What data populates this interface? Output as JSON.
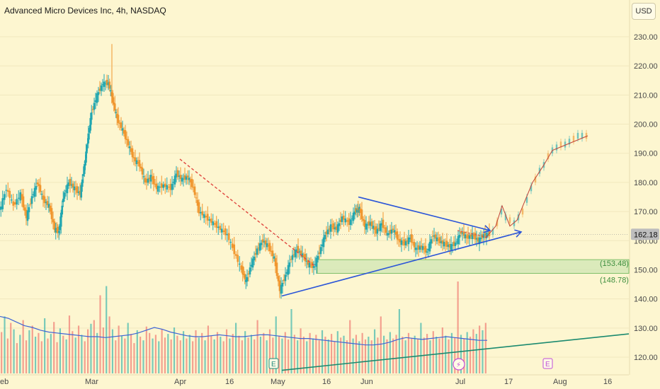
{
  "header": {
    "title": "Advanced Micro Devices Inc, 4h, NASDAQ",
    "currency": "USD"
  },
  "chart_data": {
    "type": "candlestick",
    "title": "Advanced Micro Devices Inc, 4h, NASDAQ",
    "ylim": [
      116,
      236
    ],
    "y_ticks": [
      120,
      130,
      140,
      150,
      160,
      170,
      180,
      190,
      200,
      210,
      220,
      230
    ],
    "y_tick_labels": [
      "120.00",
      "130.00",
      "140.00",
      "150.00",
      "160.00",
      "170.00",
      "180.00",
      "190.00",
      "200.00",
      "210.00",
      "220.00",
      "230.00"
    ],
    "x_tick_labels": [
      "eb",
      "Mar",
      "Apr",
      "16",
      "May",
      "16",
      "Jun",
      "Jul",
      "17",
      "Aug",
      "16"
    ],
    "current_price": {
      "value": 162.18,
      "label": "162.18"
    },
    "price_path": [
      {
        "t": 0,
        "p": 170
      },
      {
        "t": 10,
        "p": 178
      },
      {
        "t": 20,
        "p": 172
      },
      {
        "t": 30,
        "p": 176
      },
      {
        "t": 38,
        "p": 168
      },
      {
        "t": 46,
        "p": 175
      },
      {
        "t": 54,
        "p": 180
      },
      {
        "t": 62,
        "p": 174
      },
      {
        "t": 70,
        "p": 172
      },
      {
        "t": 78,
        "p": 164
      },
      {
        "t": 84,
        "p": 163
      },
      {
        "t": 90,
        "p": 175
      },
      {
        "t": 98,
        "p": 180
      },
      {
        "t": 106,
        "p": 178
      },
      {
        "t": 114,
        "p": 176
      },
      {
        "t": 120,
        "p": 186
      },
      {
        "t": 124,
        "p": 194
      },
      {
        "t": 130,
        "p": 204
      },
      {
        "t": 138,
        "p": 210
      },
      {
        "t": 146,
        "p": 214
      },
      {
        "t": 154,
        "p": 214
      },
      {
        "t": 160,
        "p": 208
      },
      {
        "t": 166,
        "p": 202
      },
      {
        "t": 174,
        "p": 198
      },
      {
        "t": 182,
        "p": 193
      },
      {
        "t": 190,
        "p": 188
      },
      {
        "t": 198,
        "p": 186
      },
      {
        "t": 206,
        "p": 180
      },
      {
        "t": 214,
        "p": 182
      },
      {
        "t": 222,
        "p": 178
      },
      {
        "t": 232,
        "p": 179
      },
      {
        "t": 242,
        "p": 178
      },
      {
        "t": 250,
        "p": 183
      },
      {
        "t": 258,
        "p": 181
      },
      {
        "t": 266,
        "p": 182
      },
      {
        "t": 274,
        "p": 178
      },
      {
        "t": 282,
        "p": 170
      },
      {
        "t": 292,
        "p": 168
      },
      {
        "t": 302,
        "p": 166
      },
      {
        "t": 312,
        "p": 164
      },
      {
        "t": 322,
        "p": 162
      },
      {
        "t": 332,
        "p": 156
      },
      {
        "t": 342,
        "p": 150
      },
      {
        "t": 348,
        "p": 146
      },
      {
        "t": 356,
        "p": 152
      },
      {
        "t": 364,
        "p": 157
      },
      {
        "t": 372,
        "p": 160
      },
      {
        "t": 380,
        "p": 158
      },
      {
        "t": 388,
        "p": 154
      },
      {
        "t": 396,
        "p": 143
      },
      {
        "t": 404,
        "p": 148
      },
      {
        "t": 412,
        "p": 154
      },
      {
        "t": 420,
        "p": 157
      },
      {
        "t": 428,
        "p": 155
      },
      {
        "t": 436,
        "p": 152
      },
      {
        "t": 444,
        "p": 151
      },
      {
        "t": 452,
        "p": 156
      },
      {
        "t": 460,
        "p": 162
      },
      {
        "t": 468,
        "p": 165
      },
      {
        "t": 476,
        "p": 164
      },
      {
        "t": 484,
        "p": 168
      },
      {
        "t": 494,
        "p": 166
      },
      {
        "t": 502,
        "p": 170
      },
      {
        "t": 508,
        "p": 171
      },
      {
        "t": 516,
        "p": 165
      },
      {
        "t": 524,
        "p": 166
      },
      {
        "t": 532,
        "p": 163
      },
      {
        "t": 540,
        "p": 166
      },
      {
        "t": 548,
        "p": 162
      },
      {
        "t": 556,
        "p": 164
      },
      {
        "t": 564,
        "p": 160
      },
      {
        "t": 572,
        "p": 159
      },
      {
        "t": 580,
        "p": 161
      },
      {
        "t": 588,
        "p": 157
      },
      {
        "t": 596,
        "p": 158
      },
      {
        "t": 604,
        "p": 156
      },
      {
        "t": 612,
        "p": 162
      },
      {
        "t": 620,
        "p": 160
      },
      {
        "t": 628,
        "p": 159
      },
      {
        "t": 636,
        "p": 158
      },
      {
        "t": 644,
        "p": 159
      },
      {
        "t": 652,
        "p": 163
      },
      {
        "t": 660,
        "p": 161
      },
      {
        "t": 668,
        "p": 162
      },
      {
        "t": 676,
        "p": 160
      },
      {
        "t": 684,
        "p": 162
      },
      {
        "t": 692,
        "p": 162.18
      }
    ],
    "projection_candles": [
      {
        "t": 696,
        "p": 163
      },
      {
        "t": 702,
        "p": 166
      },
      {
        "t": 708,
        "p": 170
      },
      {
        "t": 714,
        "p": 168
      },
      {
        "t": 720,
        "p": 167
      },
      {
        "t": 726,
        "p": 166
      },
      {
        "t": 732,
        "p": 168
      },
      {
        "t": 738,
        "p": 170
      },
      {
        "t": 744,
        "p": 174
      },
      {
        "t": 750,
        "p": 178
      },
      {
        "t": 756,
        "p": 181
      },
      {
        "t": 762,
        "p": 184
      },
      {
        "t": 768,
        "p": 186
      },
      {
        "t": 774,
        "p": 189
      },
      {
        "t": 780,
        "p": 191
      },
      {
        "t": 786,
        "p": 192
      },
      {
        "t": 792,
        "p": 193
      },
      {
        "t": 798,
        "p": 193
      },
      {
        "t": 804,
        "p": 194
      },
      {
        "t": 810,
        "p": 195
      },
      {
        "t": 816,
        "p": 196
      },
      {
        "t": 822,
        "p": 196
      },
      {
        "t": 828,
        "p": 196
      }
    ],
    "projection_path": [
      {
        "t": 686,
        "p": 161
      },
      {
        "t": 700,
        "p": 165
      },
      {
        "t": 709,
        "p": 172
      },
      {
        "t": 720,
        "p": 165
      },
      {
        "t": 730,
        "p": 167
      },
      {
        "t": 752,
        "p": 180
      },
      {
        "t": 768,
        "p": 186
      },
      {
        "t": 780,
        "p": 191
      },
      {
        "t": 800,
        "p": 193
      },
      {
        "t": 830,
        "p": 196
      }
    ],
    "support_zone": {
      "high": 153.48,
      "low": 148.78,
      "x_start": 448,
      "x_end": 888,
      "high_label": "(153.48)",
      "low_label": "(148.78)"
    },
    "drawings": {
      "downtrend_dashed": {
        "from": {
          "t": 254,
          "p": 188
        },
        "to": {
          "t": 446,
          "p": 151
        }
      },
      "triangle_upper": {
        "from": {
          "t": 506,
          "p": 175
        },
        "to": {
          "t": 692,
          "p": 163.5
        }
      },
      "triangle_lower": {
        "from": {
          "t": 398,
          "p": 141
        },
        "to": {
          "t": 736,
          "p": 163
        }
      },
      "arrow_small_red": {
        "from": {
          "t": 646,
          "p": 163.5
        },
        "to": {
          "t": 690,
          "p": 161
        }
      }
    },
    "volume": {
      "bars": [
        0.45,
        0.62,
        0.38,
        0.55,
        0.48,
        0.33,
        0.42,
        0.58,
        0.36,
        0.47,
        0.52,
        0.4,
        0.44,
        0.35,
        0.6,
        0.38,
        0.43,
        0.56,
        0.34,
        0.49,
        0.41,
        0.37,
        0.63,
        0.46,
        0.39,
        0.52,
        0.42,
        0.35,
        0.48,
        0.54,
        0.58,
        0.44,
        0.85,
        0.5,
        0.95,
        0.62,
        0.48,
        0.36,
        0.52,
        0.41,
        0.38,
        0.55,
        0.43,
        0.33,
        0.47,
        0.4,
        0.36,
        0.51,
        0.44,
        0.38,
        0.42,
        0.35,
        0.48,
        0.39,
        0.43,
        0.37,
        0.5,
        0.41,
        0.36,
        0.46,
        0.38,
        0.42,
        0.35,
        0.47,
        0.39,
        0.44,
        0.36,
        0.52,
        0.41,
        0.37,
        0.45,
        0.4,
        0.35,
        0.48,
        0.38,
        0.43,
        0.55,
        0.41,
        0.36,
        0.46,
        0.39,
        0.42,
        0.37,
        0.58,
        0.4,
        0.44,
        0.36,
        0.48,
        0.39,
        0.62,
        0.41,
        0.38,
        0.45,
        0.37,
        0.7,
        0.42,
        0.36,
        0.49,
        0.4,
        0.35,
        0.44,
        0.38,
        0.42,
        0.36,
        0.47,
        0.4,
        0.37,
        0.43,
        0.35,
        0.46,
        0.39,
        0.41,
        0.36,
        0.58,
        0.38,
        0.42,
        0.35,
        0.44,
        0.37,
        0.4,
        0.36,
        0.48,
        0.39,
        0.62,
        0.41,
        0.37,
        0.45,
        0.38,
        0.42,
        0.7,
        0.4,
        0.36,
        0.44,
        0.38,
        0.41,
        0.37,
        0.55,
        0.39,
        0.43,
        0.36,
        0.46,
        0.4,
        0.38,
        0.5,
        0.41,
        0.37,
        0.44,
        0.39,
        1.0,
        0.42,
        0.38,
        0.45,
        0.4,
        0.48,
        0.43,
        0.52,
        0.47,
        0.55
      ],
      "ma": [
        0.62,
        0.6,
        0.56,
        0.52,
        0.5,
        0.47,
        0.45,
        0.44,
        0.43,
        0.42,
        0.41,
        0.4,
        0.4,
        0.39,
        0.4,
        0.41,
        0.42,
        0.44,
        0.47,
        0.5,
        0.48,
        0.45,
        0.43,
        0.41,
        0.4,
        0.4,
        0.41,
        0.42,
        0.41,
        0.4,
        0.4,
        0.41,
        0.42,
        0.42,
        0.41,
        0.4,
        0.39,
        0.38,
        0.38,
        0.37,
        0.36,
        0.35,
        0.34,
        0.33,
        0.32,
        0.31,
        0.31,
        0.32,
        0.34,
        0.37,
        0.39,
        0.38,
        0.37,
        0.38,
        0.39,
        0.4,
        0.39,
        0.38,
        0.37,
        0.36,
        0.36
      ]
    },
    "volume_trendline": {
      "from_x": 398,
      "to_x": 888,
      "from_price": 115.5,
      "to_price": 128.0
    },
    "event_markers": [
      {
        "label": "E",
        "t": 386,
        "color": "#1e8c7e",
        "kind": "earnings"
      },
      {
        "label": "E",
        "t": 773,
        "color": "#c04ed8",
        "kind": "earnings"
      }
    ],
    "dividend_marker": {
      "t": 648,
      "symbol": "⚡"
    },
    "colors": {
      "up": "#22a7b0",
      "down": "#f0962e",
      "price_label_bg": "#bdbdbd",
      "trend_blue": "#2b55d8",
      "dashed_red": "#e0463f",
      "support_green": "#cfe6b4",
      "support_border": "#7fbf6a",
      "volume_ma": "#3e64d6",
      "volume_up": "#3fb8ae",
      "volume_down": "#ef7a72",
      "vol_trend": "#1b8a6f"
    }
  }
}
